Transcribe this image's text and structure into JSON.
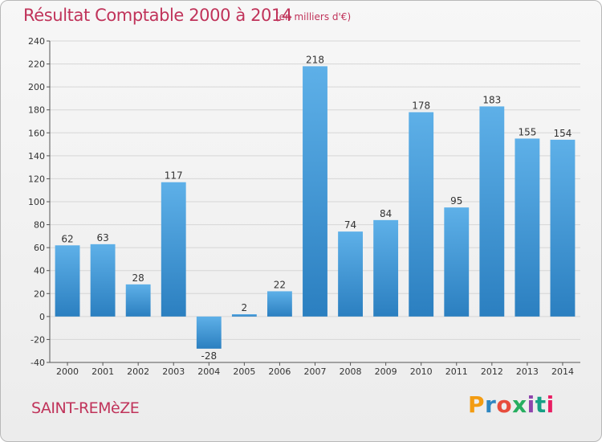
{
  "chart_data": {
    "type": "bar",
    "title": "Résultat Comptable 2000 à 2014",
    "subtitle": "(en milliers d'€)",
    "categories": [
      "2000",
      "2001",
      "2002",
      "2003",
      "2004",
      "2005",
      "2006",
      "2007",
      "2008",
      "2009",
      "2010",
      "2011",
      "2012",
      "2013",
      "2014"
    ],
    "values": [
      62,
      63,
      28,
      117,
      -28,
      2,
      22,
      218,
      74,
      84,
      178,
      95,
      183,
      155,
      154
    ],
    "ylim": [
      -40,
      240
    ],
    "yticks": [
      -40,
      -20,
      0,
      20,
      40,
      60,
      80,
      100,
      120,
      140,
      160,
      180,
      200,
      220,
      240
    ],
    "grid": true,
    "xlabel": "",
    "ylabel": "",
    "bar_color_top": "#5eb0e8",
    "bar_color_bottom": "#2b7fc0"
  },
  "footer": {
    "commune": "SAINT-REMèZE",
    "logo_text": "Proxiti",
    "logo_colors": [
      "#f39c12",
      "#2e86c1",
      "#e74c3c",
      "#27ae60",
      "#8e44ad",
      "#16a085",
      "#e91e63"
    ]
  },
  "colors": {
    "title": "#c0335a",
    "grid": "#d6d6d6",
    "axis": "#555555"
  }
}
